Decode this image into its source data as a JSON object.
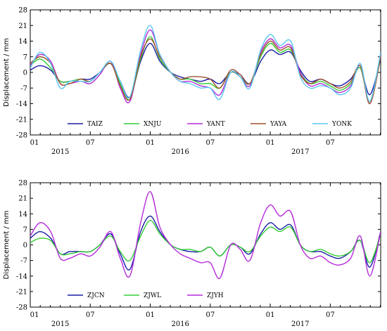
{
  "chart_data": [
    {
      "type": "line",
      "ylabel": "Displacement / mm",
      "ylim": [
        -28,
        28
      ],
      "yticks": [
        28,
        21,
        14,
        7,
        0,
        -7,
        -14,
        -21,
        -28
      ],
      "x_range": [
        2015.0,
        2017.92
      ],
      "month_ticks": [
        {
          "x": 2015.0,
          "label": "01"
        },
        {
          "x": 2015.5,
          "label": "07"
        },
        {
          "x": 2016.0,
          "label": "01"
        },
        {
          "x": 2016.5,
          "label": "07"
        },
        {
          "x": 2017.0,
          "label": "01"
        },
        {
          "x": 2017.5,
          "label": "07"
        }
      ],
      "year_ticks": [
        {
          "x": 2015.25,
          "label": "2015"
        },
        {
          "x": 2016.25,
          "label": "2016"
        },
        {
          "x": 2017.25,
          "label": "2017"
        }
      ],
      "grid": false,
      "legend_position": "bottom",
      "x": [
        2015.0,
        2015.08,
        2015.17,
        2015.25,
        2015.33,
        2015.42,
        2015.5,
        2015.58,
        2015.67,
        2015.75,
        2015.83,
        2015.92,
        2016.0,
        2016.08,
        2016.17,
        2016.25,
        2016.33,
        2016.42,
        2016.5,
        2016.58,
        2016.67,
        2016.75,
        2016.83,
        2016.92,
        2017.0,
        2017.08,
        2017.17,
        2017.25,
        2017.33,
        2017.42,
        2017.5,
        2017.58,
        2017.67,
        2017.75,
        2017.83,
        2017.92
      ],
      "series": [
        {
          "name": "TAIZ",
          "color": "#1a1aa6",
          "values": [
            1,
            3,
            1,
            -4,
            -4,
            -3,
            -3,
            0,
            4,
            -4,
            -11,
            5,
            13,
            5,
            0,
            -2,
            -3,
            -4,
            -3,
            -5,
            0,
            -1,
            -5,
            5,
            10,
            8,
            9,
            1,
            -4,
            -3,
            -5,
            -6,
            -3,
            2,
            -10,
            6
          ]
        },
        {
          "name": "XNJU",
          "color": "#33cc33",
          "values": [
            3,
            6,
            2,
            -4,
            -4,
            -3,
            -4,
            0,
            4,
            -5,
            -12,
            6,
            16,
            6,
            0,
            -3,
            -3,
            -5,
            -5,
            -7,
            0,
            -2,
            -5,
            7,
            13,
            9,
            10,
            0,
            -5,
            -4,
            -6,
            -8,
            -5,
            2,
            -13,
            7
          ]
        },
        {
          "name": "YANT",
          "color": "#b32bd9",
          "values": [
            3,
            8,
            5,
            -5,
            -5,
            -4,
            -5,
            -1,
            5,
            -7,
            -13,
            8,
            19,
            8,
            0,
            -4,
            -4,
            -6,
            -7,
            -10,
            0,
            -2,
            -6,
            9,
            15,
            11,
            12,
            0,
            -6,
            -5,
            -7,
            -9,
            -6,
            3,
            -14,
            8
          ]
        },
        {
          "name": "YAYA",
          "color": "#a0522d",
          "values": [
            4,
            7,
            4,
            -5,
            -5,
            -3,
            -4,
            0,
            4,
            -6,
            -12,
            7,
            15,
            7,
            0,
            -3,
            -2,
            -2,
            -3,
            -7,
            1,
            -1,
            -5,
            8,
            14,
            10,
            11,
            -1,
            -5,
            -3,
            -5,
            -7,
            -4,
            3,
            -14,
            7
          ]
        },
        {
          "name": "YONK",
          "color": "#5ac8f0",
          "values": [
            2,
            9,
            4,
            -7,
            -4,
            -4,
            -4,
            0,
            5,
            -4,
            -11,
            10,
            21,
            8,
            0,
            -4,
            -5,
            -7,
            -7,
            -12,
            0,
            -2,
            -7,
            10,
            17,
            12,
            14,
            -2,
            -7,
            -6,
            -7,
            -10,
            -7,
            4,
            -13,
            9
          ]
        }
      ]
    },
    {
      "type": "line",
      "ylabel": "Displacement / mm",
      "ylim": [
        -28,
        28
      ],
      "yticks": [
        28,
        21,
        14,
        7,
        0,
        -7,
        -14,
        -21,
        -28
      ],
      "x_range": [
        2015.0,
        2017.92
      ],
      "month_ticks": [
        {
          "x": 2015.0,
          "label": "01"
        },
        {
          "x": 2015.5,
          "label": "07"
        },
        {
          "x": 2016.0,
          "label": "01"
        },
        {
          "x": 2016.5,
          "label": "07"
        },
        {
          "x": 2017.0,
          "label": "01"
        },
        {
          "x": 2017.5,
          "label": "07"
        }
      ],
      "year_ticks": [
        {
          "x": 2015.25,
          "label": "2015"
        },
        {
          "x": 2016.25,
          "label": "2016"
        },
        {
          "x": 2017.25,
          "label": "2017"
        }
      ],
      "grid": false,
      "legend_position": "bottom",
      "x": [
        2015.0,
        2015.08,
        2015.17,
        2015.25,
        2015.33,
        2015.42,
        2015.5,
        2015.58,
        2015.67,
        2015.75,
        2015.83,
        2015.92,
        2016.0,
        2016.08,
        2016.17,
        2016.25,
        2016.33,
        2016.42,
        2016.5,
        2016.58,
        2016.67,
        2016.75,
        2016.83,
        2016.92,
        2017.0,
        2017.08,
        2017.17,
        2017.25,
        2017.33,
        2017.42,
        2017.5,
        2017.58,
        2017.67,
        2017.75,
        2017.83,
        2017.92
      ],
      "series": [
        {
          "name": "ZJCN",
          "color": "#1a1aa6",
          "values": [
            3,
            6,
            3,
            -4,
            -3,
            -3,
            -3,
            0,
            5,
            -4,
            -11,
            6,
            13,
            6,
            0,
            -2,
            -3,
            -3,
            -1,
            -5,
            0,
            -1,
            -4,
            5,
            10,
            7,
            9,
            0,
            -3,
            -3,
            -5,
            -6,
            -3,
            2,
            -10,
            6
          ]
        },
        {
          "name": "ZJWL",
          "color": "#33cc33",
          "values": [
            1,
            3,
            2,
            -4,
            -4,
            -3,
            -3,
            0,
            4,
            -3,
            -7,
            4,
            11,
            5,
            0,
            -2,
            -2,
            -3,
            -1,
            -5,
            0,
            -1,
            -3,
            4,
            8,
            6,
            8,
            0,
            -3,
            -2,
            -4,
            -5,
            -3,
            2,
            -8,
            5
          ]
        },
        {
          "name": "ZJYH",
          "color": "#b32bd9",
          "values": [
            4,
            10,
            6,
            -6,
            -6,
            -4,
            -5,
            -1,
            6,
            -6,
            -14,
            10,
            24,
            8,
            0,
            -4,
            -6,
            -8,
            -8,
            -15,
            0,
            -2,
            -7,
            10,
            18,
            13,
            15,
            0,
            -6,
            -5,
            -8,
            -9,
            -6,
            4,
            -14,
            6
          ]
        }
      ]
    }
  ]
}
